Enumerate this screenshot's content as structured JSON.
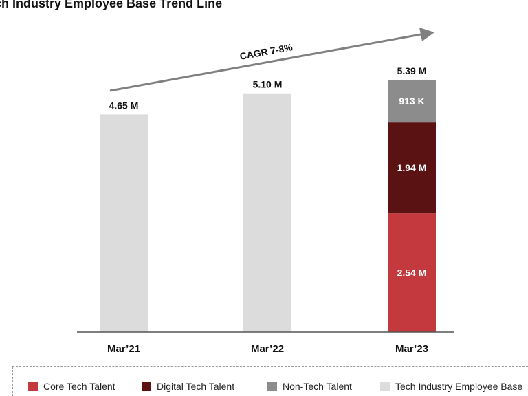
{
  "title": "ch Industry Employee Base Trend Line",
  "annotation": "CAGR 7-8%",
  "colors": {
    "core": "#c4393d",
    "digital": "#5a1212",
    "nontech": "#8c8c8c",
    "total": "#dcdcdc",
    "arrow": "#808080",
    "label_dark": "#111111",
    "label_light": "#ffffff"
  },
  "legend": [
    {
      "label": "Core Tech Talent",
      "color": "#c4393d"
    },
    {
      "label": "Digital Tech Talent",
      "color": "#5a1212"
    },
    {
      "label": "Non-Tech Talent",
      "color": "#8c8c8c"
    },
    {
      "label": "Tech Industry Employee Base",
      "color": "#dcdcdc"
    }
  ],
  "chart_data": {
    "type": "bar",
    "title": "ch Industry Employee Base Trend Line",
    "categories": [
      "Mar’21",
      "Mar’22",
      "Mar’23"
    ],
    "unit": "M",
    "totals": [
      4.65,
      5.1,
      5.39
    ],
    "total_labels": [
      "4.65 M",
      "5.10 M",
      "5.39 M"
    ],
    "series": [
      {
        "name": "Tech Industry Employee Base",
        "values": [
          4.65,
          5.1,
          null
        ]
      },
      {
        "name": "Core Tech Talent",
        "values": [
          null,
          null,
          2.54
        ],
        "labels": [
          "",
          "",
          "2.54 M"
        ]
      },
      {
        "name": "Digital Tech Talent",
        "values": [
          null,
          null,
          1.94
        ],
        "labels": [
          "",
          "",
          "1.94 M"
        ]
      },
      {
        "name": "Non-Tech Talent",
        "values": [
          null,
          null,
          0.913
        ],
        "labels": [
          "",
          "",
          "913 K"
        ]
      }
    ],
    "annotations": [
      "CAGR 7-8%"
    ],
    "ylim": [
      0,
      5.39
    ],
    "grid": false,
    "legend_position": "bottom"
  }
}
